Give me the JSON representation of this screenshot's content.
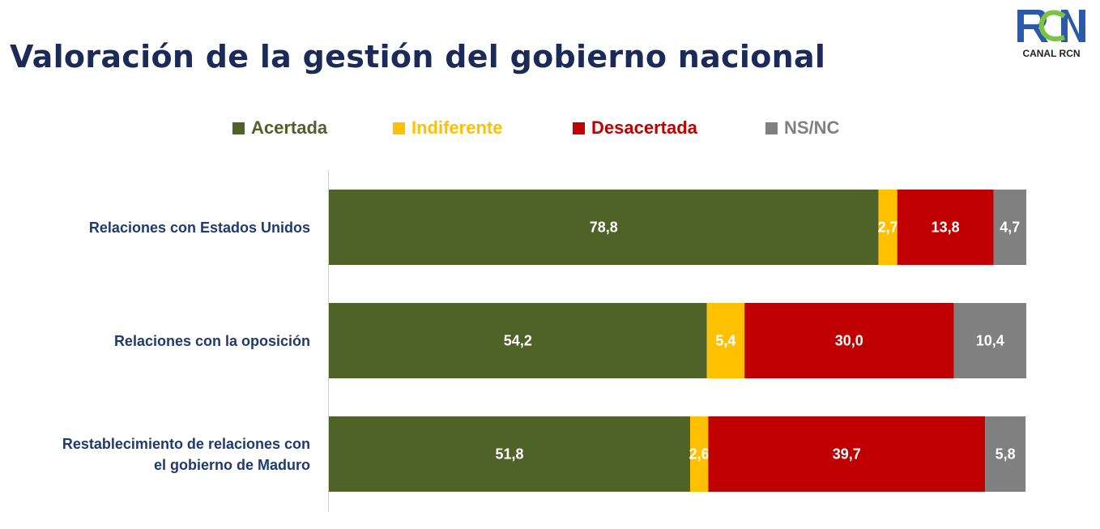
{
  "title": "Valoración de la gestión del gobierno nacional",
  "logo": {
    "text": "CANAL RCN",
    "colors": {
      "blue": "#2a5aa8",
      "green": "#7cc243"
    }
  },
  "chart_data": {
    "type": "bar",
    "orientation": "horizontal",
    "stacked": true,
    "categories": [
      "Relaciones con Estados Unidos",
      "Relaciones con la oposición",
      "Restablecimiento de relaciones con el gobierno de Maduro"
    ],
    "series": [
      {
        "name": "Acertada",
        "color": "#4f6228",
        "values": [
          78.8,
          54.2,
          51.8
        ],
        "labels": [
          "78,8",
          "54,2",
          "51,8"
        ]
      },
      {
        "name": "Indiferente",
        "color": "#ffc000",
        "values": [
          2.7,
          5.4,
          2.6
        ],
        "labels": [
          "2,7",
          "5,4",
          "2,6"
        ]
      },
      {
        "name": "Desacertada",
        "color": "#c00000",
        "values": [
          13.8,
          30.0,
          39.7
        ],
        "labels": [
          "13,8",
          "30,0",
          "39,7"
        ]
      },
      {
        "name": "NS/NC",
        "color": "#808080",
        "values": [
          4.7,
          10.4,
          5.8
        ],
        "labels": [
          "4,7",
          "10,4",
          "5,8"
        ]
      }
    ],
    "xlim": [
      0,
      100
    ],
    "grid": false,
    "legend_position": "top"
  }
}
